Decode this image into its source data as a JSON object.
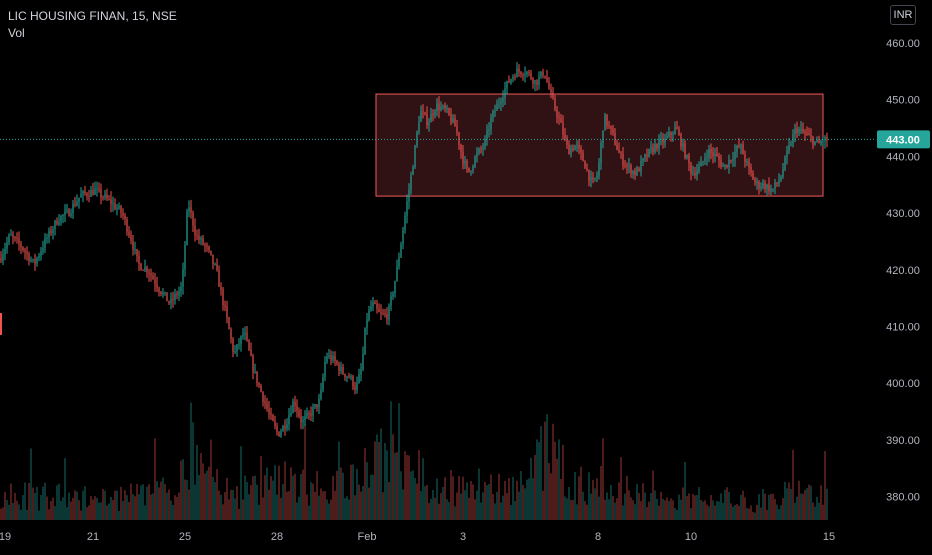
{
  "legend": {
    "symbol_line": "LIC HOUSING FINAN, 15, NSE",
    "volume_label": "Vol"
  },
  "currency": "INR",
  "colors": {
    "up": "#26a69a",
    "down": "#ef5350",
    "rectangle_fill": "#3a1517",
    "rectangle_border": "#f05a5a",
    "price_line": "#26a69a"
  },
  "chart_data": {
    "type": "candlestick",
    "y_axis": {
      "ticks": [
        "460.00",
        "450.00",
        "440.00",
        "430.00",
        "420.00",
        "410.00",
        "400.00",
        "390.00",
        "380.00"
      ],
      "range": [
        376,
        463
      ]
    },
    "x_axis": {
      "ticks": [
        "19",
        "21",
        "25",
        "28",
        "Feb",
        "3",
        "8",
        "10",
        "15"
      ]
    },
    "last_price": "443.00",
    "last_price_value": 443,
    "range_box": {
      "from_label": "Feb",
      "top": 451,
      "bottom": 433
    },
    "price_path": [
      [
        0,
        422
      ],
      [
        10,
        426
      ],
      [
        22,
        424
      ],
      [
        34,
        421
      ],
      [
        45,
        425
      ],
      [
        58,
        429
      ],
      [
        68,
        430
      ],
      [
        80,
        433
      ],
      [
        95,
        434
      ],
      [
        110,
        432
      ],
      [
        122,
        430
      ],
      [
        132,
        425
      ],
      [
        138,
        421
      ],
      [
        148,
        420
      ],
      [
        158,
        417
      ],
      [
        170,
        414
      ],
      [
        182,
        417
      ],
      [
        188,
        432
      ],
      [
        196,
        426
      ],
      [
        206,
        424
      ],
      [
        216,
        420
      ],
      [
        226,
        412
      ],
      [
        234,
        405
      ],
      [
        244,
        409
      ],
      [
        254,
        402
      ],
      [
        262,
        398
      ],
      [
        270,
        394
      ],
      [
        278,
        391
      ],
      [
        286,
        393
      ],
      [
        294,
        397
      ],
      [
        302,
        393
      ],
      [
        312,
        395
      ],
      [
        320,
        397
      ],
      [
        326,
        405
      ],
      [
        334,
        404
      ],
      [
        342,
        402
      ],
      [
        350,
        401
      ],
      [
        356,
        399
      ],
      [
        362,
        403
      ],
      [
        366,
        411
      ],
      [
        372,
        414
      ],
      [
        380,
        412
      ],
      [
        388,
        412
      ],
      [
        396,
        419
      ],
      [
        402,
        426
      ],
      [
        408,
        433
      ],
      [
        414,
        440
      ],
      [
        420,
        448
      ],
      [
        428,
        446
      ],
      [
        436,
        449
      ],
      [
        446,
        448
      ],
      [
        456,
        445
      ],
      [
        462,
        440
      ],
      [
        468,
        437
      ],
      [
        476,
        440
      ],
      [
        484,
        442
      ],
      [
        492,
        447
      ],
      [
        500,
        450
      ],
      [
        508,
        453
      ],
      [
        516,
        455
      ],
      [
        526,
        455
      ],
      [
        536,
        453
      ],
      [
        544,
        455
      ],
      [
        552,
        450
      ],
      [
        560,
        446
      ],
      [
        568,
        441
      ],
      [
        576,
        442
      ],
      [
        584,
        439
      ],
      [
        592,
        435
      ],
      [
        598,
        437
      ],
      [
        604,
        447
      ],
      [
        612,
        444
      ],
      [
        620,
        440
      ],
      [
        628,
        438
      ],
      [
        636,
        437
      ],
      [
        646,
        440
      ],
      [
        656,
        442
      ],
      [
        666,
        443
      ],
      [
        676,
        445
      ],
      [
        684,
        441
      ],
      [
        692,
        437
      ],
      [
        700,
        438
      ],
      [
        708,
        441
      ],
      [
        716,
        440
      ],
      [
        724,
        438
      ],
      [
        732,
        440
      ],
      [
        740,
        442
      ],
      [
        748,
        438
      ],
      [
        756,
        435
      ],
      [
        764,
        435
      ],
      [
        772,
        434
      ],
      [
        780,
        436
      ],
      [
        788,
        441
      ],
      [
        796,
        445
      ],
      [
        804,
        444
      ],
      [
        812,
        443
      ],
      [
        818,
        442
      ],
      [
        824,
        443
      ],
      [
        828,
        443
      ]
    ],
    "volume_path": [
      [
        0,
        0.35
      ],
      [
        20,
        0.3
      ],
      [
        60,
        0.28
      ],
      [
        100,
        0.25
      ],
      [
        180,
        0.35
      ],
      [
        185,
        0.95
      ],
      [
        230,
        0.3
      ],
      [
        280,
        0.45
      ],
      [
        330,
        0.4
      ],
      [
        362,
        0.55
      ],
      [
        380,
        0.75
      ],
      [
        410,
        0.6
      ],
      [
        440,
        0.35
      ],
      [
        464,
        0.45
      ],
      [
        520,
        0.4
      ],
      [
        552,
        0.9
      ],
      [
        560,
        0.4
      ],
      [
        600,
        0.45
      ],
      [
        650,
        0.3
      ],
      [
        700,
        0.3
      ],
      [
        760,
        0.2
      ],
      [
        792,
        0.35
      ],
      [
        828,
        0.25
      ]
    ]
  }
}
